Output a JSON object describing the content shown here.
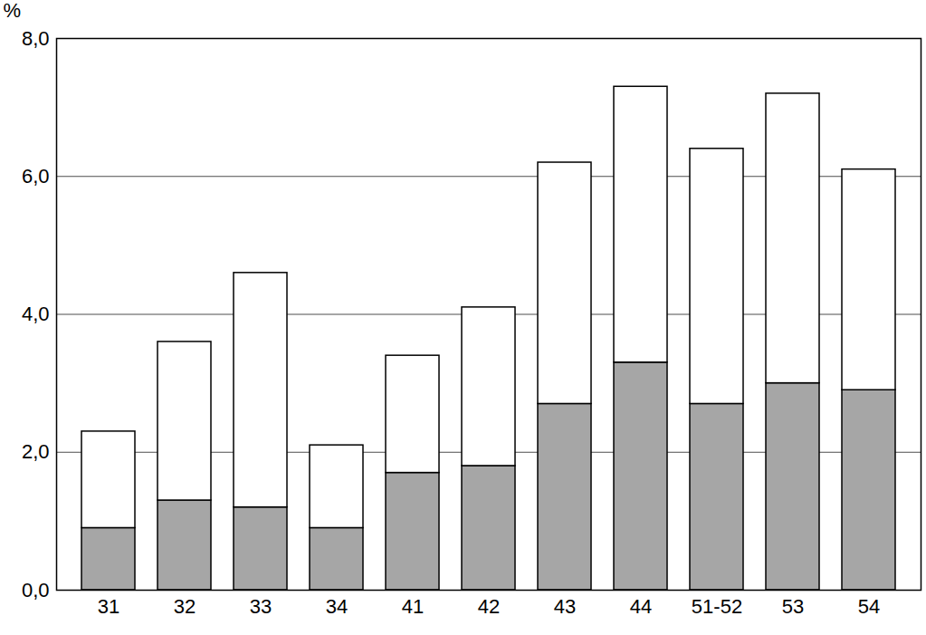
{
  "chart_data": {
    "type": "bar",
    "stacked": true,
    "grid": true,
    "ylabel": "%",
    "categories": [
      "31",
      "32",
      "33",
      "34",
      "41",
      "42",
      "43",
      "44",
      "51-52",
      "53",
      "54"
    ],
    "series": [
      {
        "color": "#a6a6a6",
        "values": [
          0.9,
          1.3,
          1.2,
          0.9,
          1.7,
          1.8,
          2.7,
          3.3,
          2.7,
          3.0,
          2.9
        ]
      },
      {
        "color": "#ffffff",
        "values": [
          1.4,
          2.3,
          3.4,
          1.2,
          1.7,
          2.3,
          3.5,
          4.0,
          3.7,
          4.2,
          3.2
        ]
      }
    ],
    "ylim": [
      0,
      8
    ],
    "yticks": [
      {
        "value": 0,
        "label": "0,0"
      },
      {
        "value": 2,
        "label": "2,0"
      },
      {
        "value": 4,
        "label": "4,0"
      },
      {
        "value": 6,
        "label": "6,0"
      },
      {
        "value": 8,
        "label": "8,0"
      }
    ]
  }
}
